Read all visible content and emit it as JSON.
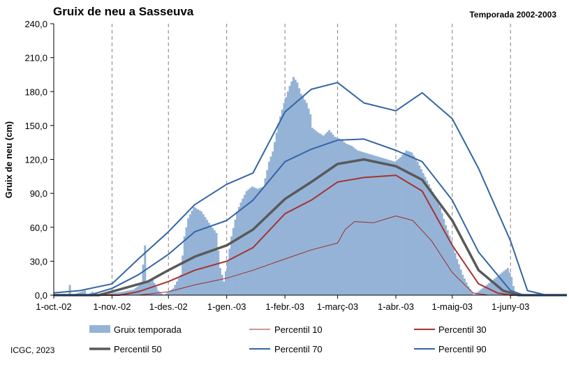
{
  "chart_data": {
    "type": "bar+line",
    "title": "Gruix de neu a Sasseuva",
    "subtitle": "Temporada 2002-2003",
    "ylabel": "Gruix de neu (cm)",
    "xlabel": "",
    "ylim": [
      0,
      240
    ],
    "yticks": [
      "0,0",
      "30,0",
      "60,0",
      "90,0",
      "120,0",
      "150,0",
      "180,0",
      "210,0",
      "240,0"
    ],
    "xlim": [
      "2002-10-01",
      "2003-07-01"
    ],
    "xticks": [
      {
        "date": "2002-10-01",
        "label": "1-oct.-02"
      },
      {
        "date": "2002-11-01",
        "label": "1-nov.-02"
      },
      {
        "date": "2002-12-01",
        "label": "1-des.-02"
      },
      {
        "date": "2003-01-01",
        "label": "1-gen.-03"
      },
      {
        "date": "2003-02-01",
        "label": "1-febr.-03"
      },
      {
        "date": "2003-03-01",
        "label": "1-març-03"
      },
      {
        "date": "2003-04-01",
        "label": "1-abr.-03"
      },
      {
        "date": "2003-05-01",
        "label": "1-maig-03"
      },
      {
        "date": "2003-06-01",
        "label": "1-juny-03"
      }
    ],
    "grid": "vertical dashed",
    "legend_position": "bottom",
    "bar_series": {
      "name": "Gruix temporada",
      "color": "#95b3d7",
      "points": [
        [
          "2002-10-09",
          9
        ],
        [
          "2002-10-10",
          0
        ],
        [
          "2002-10-17",
          4
        ],
        [
          "2002-10-18",
          0
        ],
        [
          "2002-10-21",
          3
        ],
        [
          "2002-10-22",
          0
        ],
        [
          "2002-11-06",
          3
        ],
        [
          "2002-11-12",
          5
        ],
        [
          "2002-11-16",
          10
        ],
        [
          "2002-11-18",
          44
        ],
        [
          "2002-11-19",
          12
        ],
        [
          "2002-11-22",
          14
        ],
        [
          "2002-11-25",
          4
        ],
        [
          "2002-11-28",
          0
        ],
        [
          "2002-12-03",
          6
        ],
        [
          "2002-12-05",
          12
        ],
        [
          "2002-12-07",
          18
        ],
        [
          "2002-12-09",
          52
        ],
        [
          "2002-12-11",
          68
        ],
        [
          "2002-12-14",
          78
        ],
        [
          "2002-12-18",
          74
        ],
        [
          "2002-12-22",
          64
        ],
        [
          "2002-12-26",
          55
        ],
        [
          "2002-12-28",
          24
        ],
        [
          "2002-12-30",
          12
        ],
        [
          "2003-01-01",
          30
        ],
        [
          "2003-01-03",
          52
        ],
        [
          "2003-01-06",
          74
        ],
        [
          "2003-01-08",
          82
        ],
        [
          "2003-01-11",
          92
        ],
        [
          "2003-01-14",
          96
        ],
        [
          "2003-01-17",
          94
        ],
        [
          "2003-01-20",
          96
        ],
        [
          "2003-01-23",
          118
        ],
        [
          "2003-01-25",
          127
        ],
        [
          "2003-01-28",
          152
        ],
        [
          "2003-01-31",
          170
        ],
        [
          "2003-02-03",
          185
        ],
        [
          "2003-02-05",
          193
        ],
        [
          "2003-02-07",
          188
        ],
        [
          "2003-02-09",
          178
        ],
        [
          "2003-02-12",
          170
        ],
        [
          "2003-02-14",
          160
        ],
        [
          "2003-02-15",
          148
        ],
        [
          "2003-02-18",
          144
        ],
        [
          "2003-02-21",
          141
        ],
        [
          "2003-02-24",
          146
        ],
        [
          "2003-02-27",
          140
        ],
        [
          "2003-03-02",
          138
        ],
        [
          "2003-03-05",
          134
        ],
        [
          "2003-03-08",
          132
        ],
        [
          "2003-03-11",
          128
        ],
        [
          "2003-03-15",
          126
        ],
        [
          "2003-03-19",
          124
        ],
        [
          "2003-03-23",
          122
        ],
        [
          "2003-03-27",
          120
        ],
        [
          "2003-03-31",
          118
        ],
        [
          "2003-04-03",
          122
        ],
        [
          "2003-04-06",
          128
        ],
        [
          "2003-04-09",
          126
        ],
        [
          "2003-04-12",
          118
        ],
        [
          "2003-04-15",
          108
        ],
        [
          "2003-04-18",
          98
        ],
        [
          "2003-04-21",
          88
        ],
        [
          "2003-04-24",
          78
        ],
        [
          "2003-04-27",
          62
        ],
        [
          "2003-04-30",
          48
        ],
        [
          "2003-05-03",
          32
        ],
        [
          "2003-05-06",
          18
        ],
        [
          "2003-05-09",
          8
        ],
        [
          "2003-05-11",
          3
        ],
        [
          "2003-05-12",
          0
        ],
        [
          "2003-05-30",
          24
        ],
        [
          "2003-06-01",
          16
        ],
        [
          "2003-06-03",
          0
        ]
      ]
    },
    "series": [
      {
        "name": "Percentil 10",
        "color": "#9b2d2a",
        "width": 1,
        "points": [
          [
            "2002-10-01",
            0
          ],
          [
            "2002-11-15",
            0
          ],
          [
            "2002-12-01",
            3
          ],
          [
            "2002-12-15",
            9
          ],
          [
            "2003-01-01",
            15
          ],
          [
            "2003-01-15",
            22
          ],
          [
            "2003-02-01",
            32
          ],
          [
            "2003-02-15",
            40
          ],
          [
            "2003-03-01",
            46
          ],
          [
            "2003-03-05",
            58
          ],
          [
            "2003-03-10",
            65
          ],
          [
            "2003-03-20",
            64
          ],
          [
            "2003-04-01",
            70
          ],
          [
            "2003-04-10",
            66
          ],
          [
            "2003-04-20",
            48
          ],
          [
            "2003-05-01",
            20
          ],
          [
            "2003-05-12",
            2
          ],
          [
            "2003-05-20",
            0
          ],
          [
            "2003-07-01",
            0
          ]
        ]
      },
      {
        "name": "Percentil 30",
        "color": "#a33431",
        "width": 2,
        "points": [
          [
            "2002-10-01",
            0
          ],
          [
            "2002-11-05",
            0
          ],
          [
            "2002-11-15",
            3
          ],
          [
            "2002-12-01",
            12
          ],
          [
            "2002-12-15",
            22
          ],
          [
            "2003-01-01",
            30
          ],
          [
            "2003-01-15",
            42
          ],
          [
            "2003-02-01",
            72
          ],
          [
            "2003-02-15",
            84
          ],
          [
            "2003-03-01",
            100
          ],
          [
            "2003-03-15",
            104
          ],
          [
            "2003-04-01",
            106
          ],
          [
            "2003-04-15",
            92
          ],
          [
            "2003-05-01",
            44
          ],
          [
            "2003-05-15",
            10
          ],
          [
            "2003-05-25",
            2
          ],
          [
            "2003-06-01",
            0
          ],
          [
            "2003-07-01",
            0
          ]
        ]
      },
      {
        "name": "Percentil 50",
        "color": "#595959",
        "width": 3.5,
        "points": [
          [
            "2002-10-01",
            0
          ],
          [
            "2002-10-25",
            0
          ],
          [
            "2002-11-05",
            5
          ],
          [
            "2002-11-20",
            12
          ],
          [
            "2002-12-01",
            22
          ],
          [
            "2002-12-15",
            34
          ],
          [
            "2003-01-01",
            44
          ],
          [
            "2003-01-15",
            58
          ],
          [
            "2003-02-01",
            85
          ],
          [
            "2003-02-15",
            100
          ],
          [
            "2003-03-01",
            116
          ],
          [
            "2003-03-15",
            120
          ],
          [
            "2003-04-01",
            114
          ],
          [
            "2003-04-15",
            102
          ],
          [
            "2003-05-01",
            66
          ],
          [
            "2003-05-15",
            22
          ],
          [
            "2003-05-28",
            4
          ],
          [
            "2003-06-05",
            0
          ],
          [
            "2003-07-01",
            0
          ]
        ]
      },
      {
        "name": "Percentil 70",
        "color": "#3465a4",
        "width": 2,
        "points": [
          [
            "2002-10-01",
            0
          ],
          [
            "2002-10-20",
            0
          ],
          [
            "2002-11-01",
            6
          ],
          [
            "2002-11-15",
            18
          ],
          [
            "2002-12-01",
            36
          ],
          [
            "2002-12-15",
            56
          ],
          [
            "2003-01-01",
            66
          ],
          [
            "2003-01-15",
            84
          ],
          [
            "2003-02-01",
            118
          ],
          [
            "2003-02-15",
            129
          ],
          [
            "2003-03-01",
            137
          ],
          [
            "2003-03-15",
            138
          ],
          [
            "2003-04-01",
            128
          ],
          [
            "2003-04-15",
            118
          ],
          [
            "2003-05-01",
            84
          ],
          [
            "2003-05-15",
            38
          ],
          [
            "2003-06-01",
            4
          ],
          [
            "2003-06-08",
            0
          ],
          [
            "2003-07-01",
            0
          ]
        ]
      },
      {
        "name": "Percentil 90",
        "color": "#3465a4",
        "width": 2,
        "points": [
          [
            "2002-10-01",
            2
          ],
          [
            "2002-10-15",
            4
          ],
          [
            "2002-11-01",
            10
          ],
          [
            "2002-11-15",
            32
          ],
          [
            "2002-12-01",
            56
          ],
          [
            "2002-12-15",
            80
          ],
          [
            "2003-01-01",
            98
          ],
          [
            "2003-01-15",
            108
          ],
          [
            "2003-02-01",
            162
          ],
          [
            "2003-02-15",
            182
          ],
          [
            "2003-03-01",
            188
          ],
          [
            "2003-03-15",
            170
          ],
          [
            "2003-04-01",
            163
          ],
          [
            "2003-04-15",
            179
          ],
          [
            "2003-05-01",
            156
          ],
          [
            "2003-05-15",
            112
          ],
          [
            "2003-06-01",
            48
          ],
          [
            "2003-06-10",
            4
          ],
          [
            "2003-06-20",
            0
          ],
          [
            "2003-07-01",
            0
          ]
        ]
      }
    ]
  },
  "credit": "ICGC, 2023"
}
